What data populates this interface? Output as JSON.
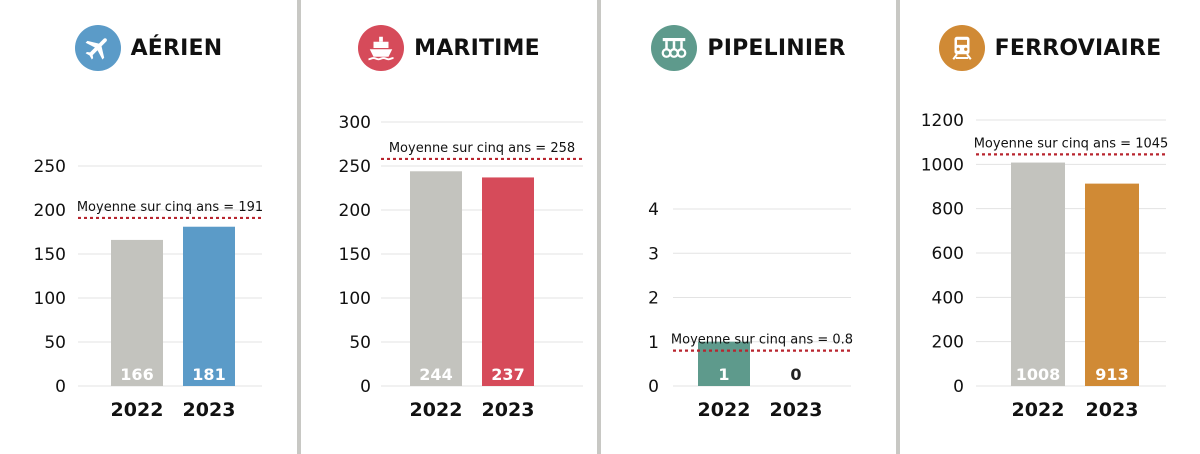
{
  "chart_data": [
    {
      "type": "bar",
      "title": "AÉRIEN",
      "icon": "airplane-icon",
      "accent": "#5b9bc8",
      "categories": [
        "2022",
        "2023"
      ],
      "values": [
        166,
        181
      ],
      "value_labels": [
        "166",
        "181"
      ],
      "bar_colors": [
        "#c3c3be",
        "#5b9bc8"
      ],
      "ylim": [
        0,
        250
      ],
      "yticks": [
        0,
        50,
        100,
        150,
        200,
        250
      ],
      "grid": true,
      "average": {
        "value": 191,
        "label": "Moyenne sur cinq ans = 191"
      }
    },
    {
      "type": "bar",
      "title": "MARITIME",
      "icon": "ship-icon",
      "accent": "#d64b5a",
      "categories": [
        "2022",
        "2023"
      ],
      "values": [
        244,
        237
      ],
      "value_labels": [
        "244",
        "237"
      ],
      "bar_colors": [
        "#c3c3be",
        "#d64b5a"
      ],
      "ylim": [
        0,
        300
      ],
      "yticks": [
        0,
        50,
        100,
        150,
        200,
        250,
        300
      ],
      "grid": true,
      "average": {
        "value": 258,
        "label": "Moyenne sur cinq ans = 258"
      }
    },
    {
      "type": "bar",
      "title": "PIPELINIER",
      "icon": "pipeline-icon",
      "accent": "#5e9a8c",
      "categories": [
        "2022",
        "2023"
      ],
      "values": [
        1,
        0
      ],
      "value_labels": [
        "1",
        "0"
      ],
      "bar_colors": [
        "#5e9a8c",
        "#5e9a8c"
      ],
      "ylim": [
        0,
        4
      ],
      "yticks": [
        0,
        1,
        2,
        3,
        4
      ],
      "grid": true,
      "average": {
        "value": 0.8,
        "label": "Moyenne sur cinq ans = 0.8"
      }
    },
    {
      "type": "bar",
      "title": "FERROVIAIRE",
      "icon": "train-icon",
      "accent": "#d08a35",
      "categories": [
        "2022",
        "2023"
      ],
      "values": [
        1008,
        913
      ],
      "value_labels": [
        "1008",
        "913"
      ],
      "bar_colors": [
        "#c3c3be",
        "#d08a35"
      ],
      "ylim": [
        0,
        1200
      ],
      "yticks": [
        0,
        200,
        400,
        600,
        800,
        1000,
        1200
      ],
      "grid": true,
      "average": {
        "value": 1045,
        "label": "Moyenne sur cinq ans = 1045"
      }
    }
  ]
}
